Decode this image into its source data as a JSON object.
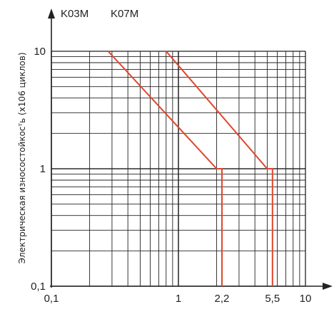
{
  "chart_data": {
    "type": "line",
    "title": "",
    "ylabel": "Электрическая износостойкосᵀь (х106 циклов)",
    "xlabel": "",
    "x_scale": "log",
    "y_scale": "log",
    "xlim": [
      0.1,
      10
    ],
    "ylim": [
      0.1,
      10
    ],
    "x_ticks": [
      {
        "value": 0.1,
        "label": "0,1"
      },
      {
        "value": 1,
        "label": "1"
      },
      {
        "value": 2.2,
        "label": "2,2"
      },
      {
        "value": 5.5,
        "label": "5,5"
      },
      {
        "value": 10,
        "label": "10"
      }
    ],
    "y_ticks": [
      {
        "value": 0.1,
        "label": "0,1"
      },
      {
        "value": 1,
        "label": "1"
      },
      {
        "value": 10,
        "label": "10"
      }
    ],
    "grid": true,
    "series": [
      {
        "name": "K03M",
        "color": "#e0462c",
        "points": [
          [
            0.28,
            10
          ],
          [
            2.0,
            1.0
          ],
          [
            2.2,
            1.0
          ],
          [
            2.2,
            0.1
          ]
        ]
      },
      {
        "name": "K07M",
        "color": "#e0462c",
        "points": [
          [
            0.8,
            10
          ],
          [
            5.0,
            1.0
          ],
          [
            5.5,
            1.0
          ],
          [
            5.5,
            0.1
          ]
        ]
      }
    ]
  }
}
